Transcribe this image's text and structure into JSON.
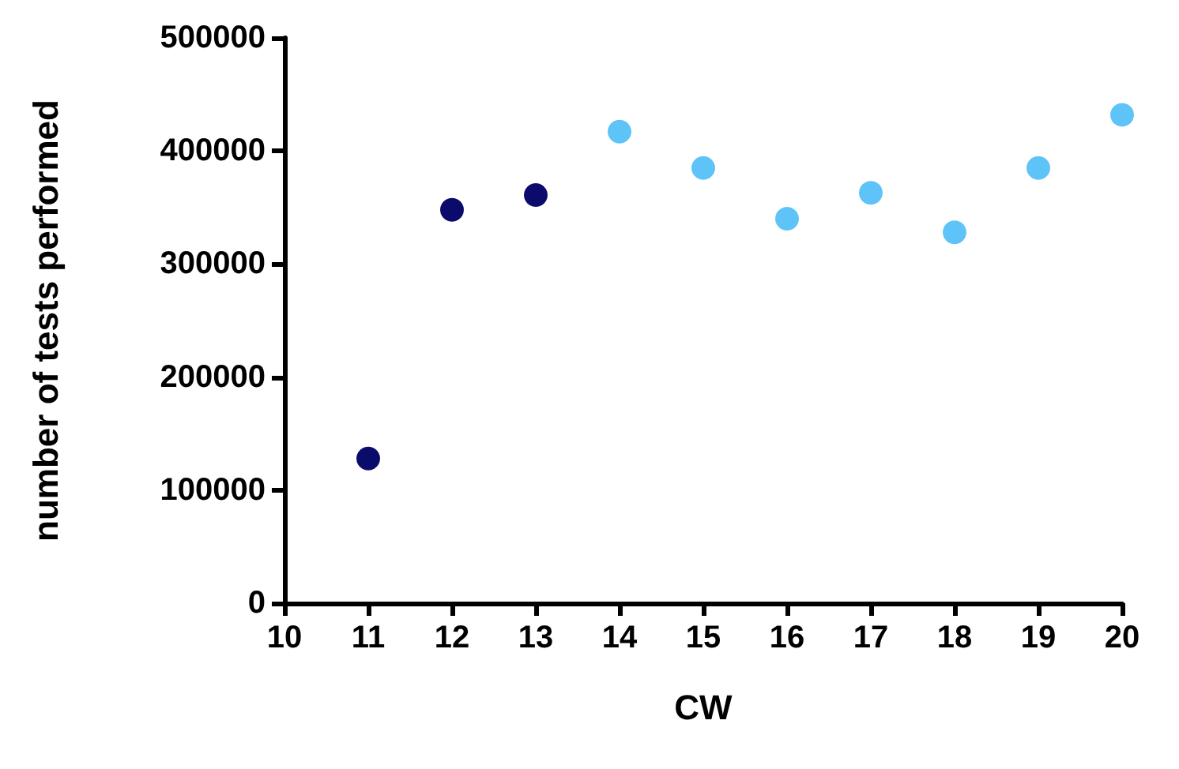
{
  "chart_data": {
    "type": "scatter",
    "xlabel": "CW",
    "ylabel": "number of tests performed",
    "xlim": [
      10,
      20
    ],
    "xticks": [
      10,
      11,
      12,
      13,
      14,
      15,
      16,
      17,
      18,
      19,
      20
    ],
    "ylim": [
      0,
      500000
    ],
    "yticks": [
      0,
      100000,
      200000,
      300000,
      400000,
      500000
    ],
    "grid": false,
    "marker": "circle",
    "series": [
      {
        "color": "#0b0b6b",
        "x": [
          11,
          12,
          13
        ],
        "values": [
          128000,
          348000,
          361000
        ]
      },
      {
        "color": "#5ec3f7",
        "x": [
          14,
          15,
          16,
          17,
          18,
          19,
          20
        ],
        "values": [
          417000,
          385000,
          340000,
          363000,
          328000,
          385000,
          432000
        ]
      }
    ]
  }
}
